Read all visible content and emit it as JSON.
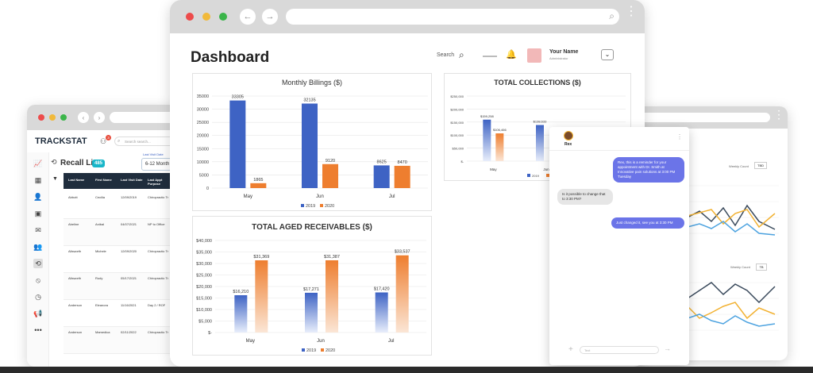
{
  "colors": {
    "blue": "#3e63c4",
    "orange": "#ee7e2f",
    "purple": "#6b74e8",
    "dark": "#1f2d3d",
    "teal": "#19b6c9"
  },
  "left_app": {
    "logo": "TRACKSTAT",
    "badge_count": "3",
    "search_placeholder": "Search search...",
    "recall_title": "Recall List",
    "recall_count": "485",
    "filter_label": "6-12 Month",
    "filter_hint": "Last Visit Date",
    "columns": [
      "Last Name",
      "First Name",
      "Last Visit Date",
      "Last Appt Purpose"
    ],
    "rows": [
      [
        "Abbott",
        "Cecilia",
        "12/09/2019",
        "Chiropractic Tr"
      ],
      [
        "Abeline",
        "Anibal",
        "04/07/2021",
        "NP to Office"
      ],
      [
        "Allsworth",
        "Michele",
        "12/09/2020",
        "Chiropractic Tr"
      ],
      [
        "Allsworth",
        "Rudy",
        "05/17/2021",
        "Chiropractic Tr"
      ],
      [
        "Anderson",
        "Eleanora",
        "11/16/2021",
        "Day 2 / ROF"
      ],
      [
        "Anderson",
        "Mamedica",
        "02/11/2022",
        "Chiropractic Tr"
      ]
    ],
    "side_icons": [
      "chart-icon",
      "calendar-icon",
      "user-icon",
      "schedule-icon",
      "mail-icon",
      "group-icon",
      "recall-icon",
      "block-icon",
      "clock-icon",
      "megaphone-icon",
      "more-icon"
    ]
  },
  "dashboard": {
    "title": "Dashboard",
    "search_label": "Search",
    "user_name": "Your Name",
    "user_role": "Administrator"
  },
  "chart_data": [
    {
      "type": "bar",
      "title": "Monthly Billings ($)",
      "categories": [
        "May",
        "Jun",
        "Jul"
      ],
      "series": [
        {
          "name": "2019",
          "values": [
            33305,
            32135,
            8625
          ]
        },
        {
          "name": "2020",
          "values": [
            1865,
            9120,
            8470
          ]
        }
      ],
      "data_labels": [
        [
          "33305",
          "1865"
        ],
        [
          "32135",
          "9120"
        ],
        [
          "8625",
          "8470"
        ]
      ],
      "ylim": [
        0,
        35000
      ],
      "yticks": [
        "35000",
        "30000",
        "25000",
        "20000",
        "15000",
        "10000",
        "5000",
        "0"
      ],
      "legend": "bottom"
    },
    {
      "type": "bar",
      "title": "TOTAL AGED RECEIVABLES ($)",
      "categories": [
        "May",
        "Jun",
        "Jul"
      ],
      "series": [
        {
          "name": "2019",
          "values": [
            16210,
            17271,
            17420
          ]
        },
        {
          "name": "2020",
          "values": [
            31369,
            31387,
            33537
          ]
        }
      ],
      "data_labels": [
        [
          "$16,210",
          "$31,369"
        ],
        [
          "$17,271",
          "$31,387"
        ],
        [
          "$17,420",
          "$33,537"
        ]
      ],
      "ylim": [
        0,
        40000
      ],
      "yticks": [
        "$40,000",
        "$35,000",
        "$30,000",
        "$25,000",
        "$20,000",
        "$15,000",
        "$10,000",
        "$5,000",
        "$-"
      ],
      "legend": "bottom"
    },
    {
      "type": "bar",
      "title": "TOTAL COLLECTIONS ($)",
      "categories": [
        "May",
        "Jun",
        "Jul"
      ],
      "series": [
        {
          "name": "2019",
          "values": [
            159258,
            138633,
            0
          ]
        },
        {
          "name": "2020",
          "values": [
            106466,
            0,
            0
          ]
        }
      ],
      "data_labels": [
        [
          "$159,258",
          "$106,466"
        ],
        [
          "$138,633",
          ""
        ],
        [
          "",
          ""
        ]
      ],
      "ylim": [
        0,
        250000
      ],
      "yticks": [
        "$250,000",
        "$200,000",
        "$150,000",
        "$100,000",
        "$50,000",
        "$-"
      ],
      "legend": "bottom"
    }
  ],
  "chat": {
    "contact": "Rex",
    "messages": [
      {
        "from": "me",
        "text": "Rex, this is a reminder for your appointment with Dr. Smith at Innovative pain solutions at 3:00 PM Tuesday"
      },
      {
        "from": "them",
        "text": "Is it possible to change that to 3:30 PM?"
      },
      {
        "from": "me",
        "text": "Just changed it, see you at 3:30 PM"
      }
    ],
    "input_placeholder": "Text"
  },
  "right_app": {
    "panel1_label": "Weekly Count",
    "panel2_label": "Weekly Count",
    "toggle": "TBD",
    "toggle2": "TB"
  }
}
